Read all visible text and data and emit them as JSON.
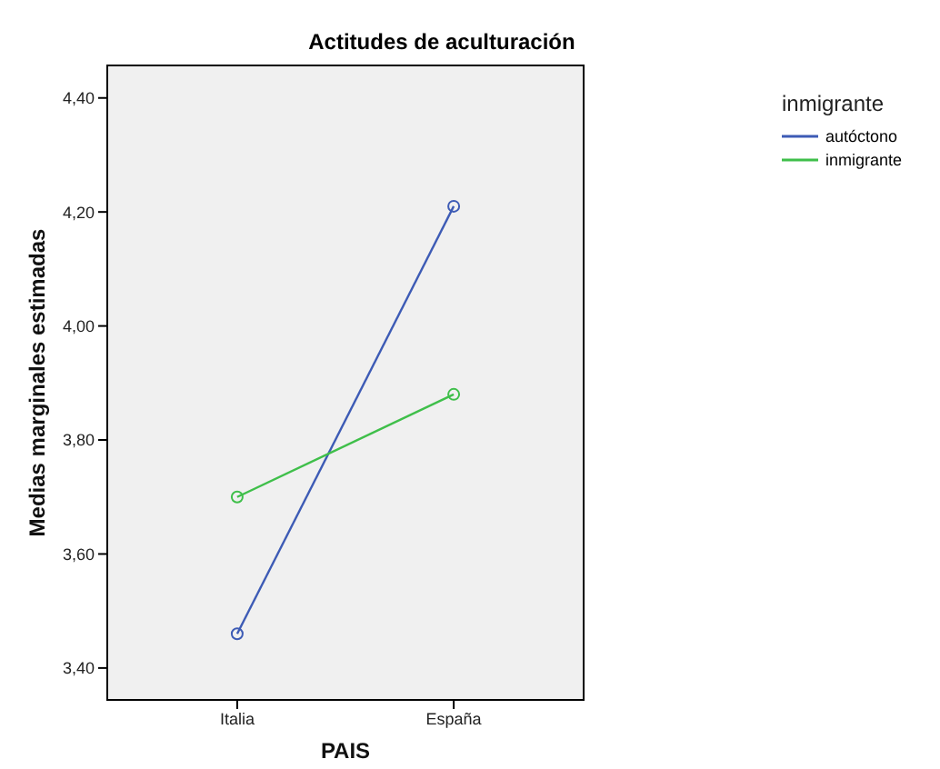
{
  "chart_data": {
    "type": "line",
    "title": "Actitudes de aculturación",
    "xlabel": "PAIS",
    "ylabel": "Medias marginales estimadas",
    "legend_title": "inmigrante",
    "categories": [
      "Italia",
      "España"
    ],
    "series": [
      {
        "name": "autóctono",
        "color": "#3d5bb5",
        "values": [
          3.46,
          4.21
        ]
      },
      {
        "name": "inmigrante",
        "color": "#3fbf4a",
        "values": [
          3.7,
          3.88
        ]
      }
    ],
    "ylim": [
      3.344,
      4.457
    ],
    "yticks": [
      {
        "value": 3.4,
        "label": "3,40"
      },
      {
        "value": 3.6,
        "label": "3,60"
      },
      {
        "value": 3.8,
        "label": "3,80"
      },
      {
        "value": 4.0,
        "label": "4,00"
      },
      {
        "value": 4.2,
        "label": "4,20"
      },
      {
        "value": 4.4,
        "label": "4,40"
      }
    ],
    "legend": "right",
    "marker": "circle",
    "line_style": "solid"
  }
}
